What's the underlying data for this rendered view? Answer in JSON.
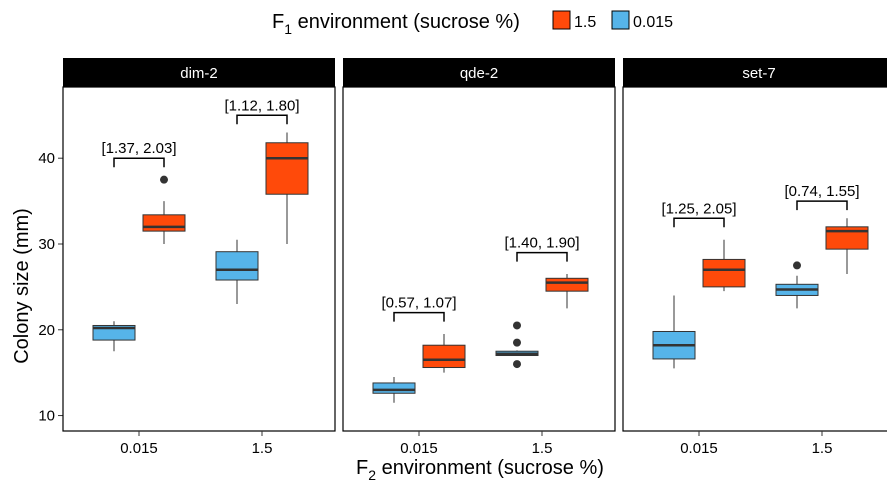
{
  "legend": {
    "title_prefix": "F",
    "title_sub": "1",
    "title_suffix": " environment (sucrose %)",
    "items": [
      {
        "label": "1.5",
        "color": "#FF4A0A"
      },
      {
        "label": "0.015",
        "color": "#56B4E9"
      }
    ]
  },
  "axes": {
    "y_label": "Colony size (mm)",
    "x_label_prefix": "F",
    "x_label_sub": "2",
    "x_label_suffix": " environment (sucrose %)"
  },
  "chart_data": {
    "type": "box",
    "x_categories": [
      "0.015",
      "1.5"
    ],
    "y_ticks": [
      10,
      20,
      30,
      40
    ],
    "ylim": [
      8.2,
      48.3
    ],
    "grid": false,
    "legend_position": "top",
    "series_colors": {
      "0.015": "#56B4E9",
      "1.5": "#FF4A0A"
    },
    "panels": [
      {
        "title": "dim-2",
        "boxes": [
          {
            "x": "0.015",
            "f1": "0.015",
            "min": 17.5,
            "q1": 18.8,
            "median": 20.2,
            "q3": 20.5,
            "max": 21.0,
            "outliers": []
          },
          {
            "x": "0.015",
            "f1": "1.5",
            "min": 30.0,
            "q1": 31.5,
            "median": 32.0,
            "q3": 33.4,
            "max": 35.0,
            "outliers": [
              37.5
            ]
          },
          {
            "x": "1.5",
            "f1": "0.015",
            "min": 23.0,
            "q1": 25.8,
            "median": 27.0,
            "q3": 29.1,
            "max": 30.5,
            "outliers": []
          },
          {
            "x": "1.5",
            "f1": "1.5",
            "min": 30.0,
            "q1": 35.8,
            "median": 40.0,
            "q3": 41.8,
            "max": 43.0,
            "outliers": []
          }
        ],
        "annotations": [
          {
            "x": "0.015",
            "text": "[1.37, 2.03]",
            "y": 40.0
          },
          {
            "x": "1.5",
            "text": "[1.12, 1.80]",
            "y": 45.0
          }
        ]
      },
      {
        "title": "qde-2",
        "boxes": [
          {
            "x": "0.015",
            "f1": "0.015",
            "min": 11.5,
            "q1": 12.6,
            "median": 13.0,
            "q3": 13.8,
            "max": 14.5,
            "outliers": []
          },
          {
            "x": "0.015",
            "f1": "1.5",
            "min": 15.0,
            "q1": 15.6,
            "median": 16.5,
            "q3": 18.2,
            "max": 19.5,
            "outliers": []
          },
          {
            "x": "1.5",
            "f1": "0.015",
            "min": 17.0,
            "q1": 17.0,
            "median": 17.2,
            "q3": 17.5,
            "max": 17.6,
            "outliers": [
              20.5,
              18.5,
              16.0
            ]
          },
          {
            "x": "1.5",
            "f1": "1.5",
            "min": 22.5,
            "q1": 24.5,
            "median": 25.5,
            "q3": 26.0,
            "max": 26.5,
            "outliers": []
          }
        ],
        "annotations": [
          {
            "x": "0.015",
            "text": "[0.57, 1.07]",
            "y": 22.0
          },
          {
            "x": "1.5",
            "text": "[1.40, 1.90]",
            "y": 29.0
          }
        ]
      },
      {
        "title": "set-7",
        "boxes": [
          {
            "x": "0.015",
            "f1": "0.015",
            "min": 15.5,
            "q1": 16.6,
            "median": 18.2,
            "q3": 19.8,
            "max": 24.0,
            "outliers": []
          },
          {
            "x": "0.015",
            "f1": "1.5",
            "min": 24.5,
            "q1": 25.0,
            "median": 27.0,
            "q3": 28.2,
            "max": 30.5,
            "outliers": []
          },
          {
            "x": "1.5",
            "f1": "0.015",
            "min": 22.5,
            "q1": 24.0,
            "median": 24.7,
            "q3": 25.3,
            "max": 26.3,
            "outliers": [
              27.5
            ]
          },
          {
            "x": "1.5",
            "f1": "1.5",
            "min": 26.5,
            "q1": 29.4,
            "median": 31.5,
            "q3": 32.0,
            "max": 33.0,
            "outliers": []
          }
        ],
        "annotations": [
          {
            "x": "0.015",
            "text": "[1.25, 2.05]",
            "y": 33.0
          },
          {
            "x": "1.5",
            "text": "[0.74, 1.55]",
            "y": 35.0
          }
        ]
      }
    ]
  }
}
